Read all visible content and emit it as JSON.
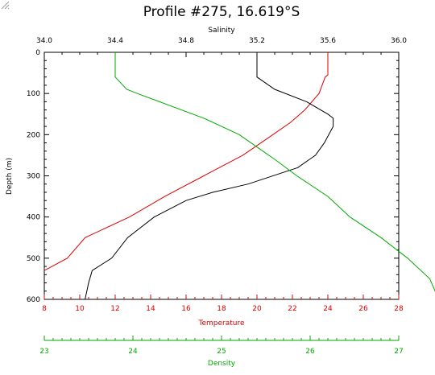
{
  "colors": {
    "temperature": "#dd0000",
    "salinity": "#000000",
    "density": "#00aa00",
    "frame": "#000000"
  },
  "chart_data": {
    "type": "line",
    "title": "Profile #275, 16.619°S",
    "y_axis": {
      "label": "Depth (m)",
      "range": [
        0,
        600
      ],
      "inverted": true,
      "ticks": [
        "0",
        "100",
        "200",
        "300",
        "400",
        "500",
        "600"
      ]
    },
    "salinity_axis": {
      "label": "Salinity",
      "position": "top",
      "range": [
        34.0,
        36.0
      ],
      "ticks": [
        "34.0",
        "34.4",
        "34.8",
        "35.2",
        "35.6",
        "36.0"
      ]
    },
    "temperature_axis": {
      "label": "Temperature",
      "position": "bottom",
      "range": [
        8,
        28
      ],
      "ticks": [
        "8",
        "10",
        "12",
        "14",
        "16",
        "18",
        "20",
        "22",
        "24",
        "26",
        "28"
      ]
    },
    "density_axis": {
      "label": "Density",
      "position": "bottom-offset",
      "range": [
        23,
        27
      ],
      "ticks": [
        "23",
        "24",
        "25",
        "26",
        "27"
      ]
    },
    "series": [
      {
        "axis": "temperature",
        "depth": [
          0,
          55,
          60,
          100,
          140,
          170,
          200,
          250,
          300,
          350,
          400,
          450,
          500,
          530
        ],
        "values": [
          24,
          24,
          23.85,
          23.5,
          22.7,
          21.9,
          20.9,
          19.2,
          17.0,
          14.8,
          12.8,
          10.3,
          9.3,
          8.0
        ]
      },
      {
        "axis": "salinity",
        "depth": [
          0,
          60,
          90,
          120,
          150,
          160,
          180,
          220,
          250,
          280,
          320,
          340,
          360,
          400,
          450,
          500,
          530,
          560,
          600
        ],
        "values": [
          35.2,
          35.2,
          35.3,
          35.48,
          35.6,
          35.63,
          35.63,
          35.58,
          35.53,
          35.43,
          35.15,
          34.95,
          34.8,
          34.62,
          34.47,
          34.38,
          34.27,
          34.25,
          34.23
        ]
      },
      {
        "axis": "density",
        "depth": [
          0,
          60,
          90,
          100,
          120,
          160,
          200,
          230,
          260,
          300,
          350,
          400,
          450,
          500,
          550,
          600
        ],
        "values": [
          23.8,
          23.8,
          23.93,
          24.05,
          24.3,
          24.8,
          25.2,
          25.4,
          25.6,
          25.85,
          26.2,
          26.45,
          26.8,
          27.1,
          27.35,
          27.45
        ]
      }
    ]
  }
}
